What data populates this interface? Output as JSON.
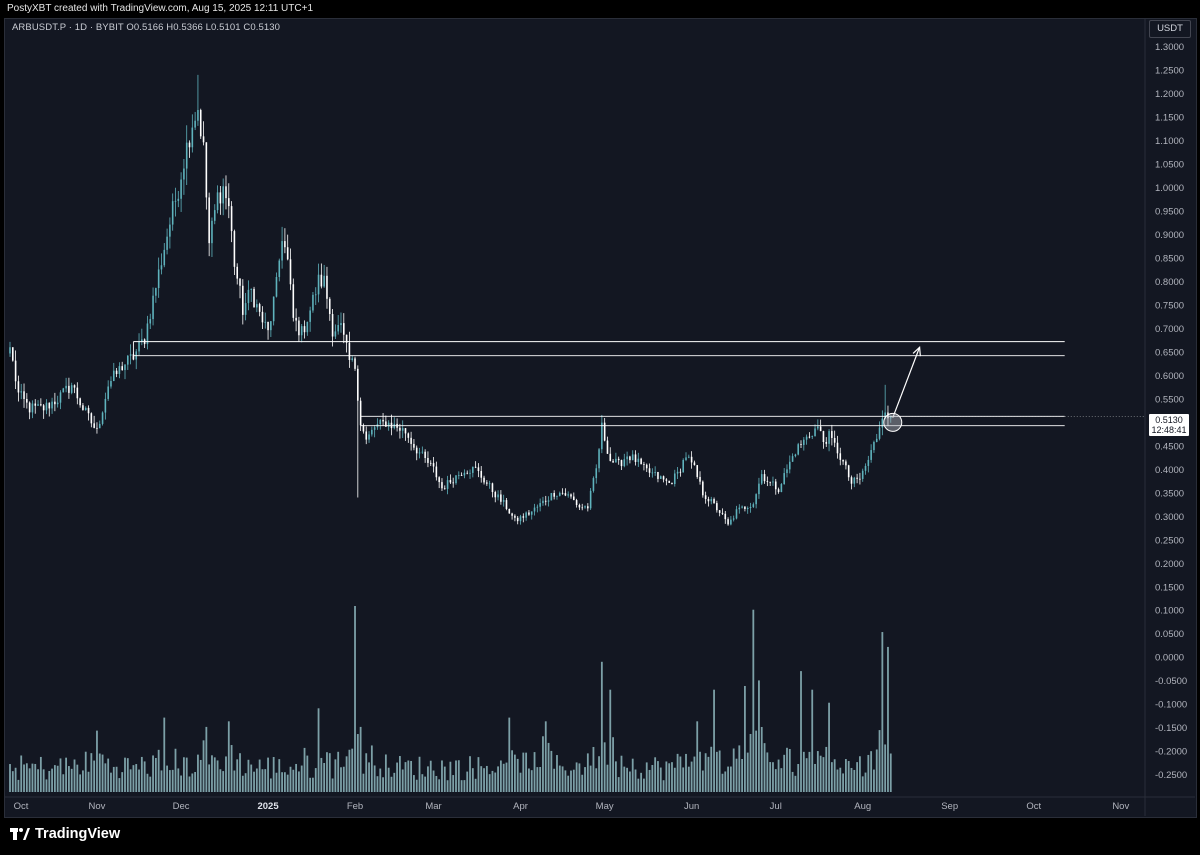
{
  "header": {
    "text": "PostyXBT created with TradingView.com, Aug 15, 2025 12:11 UTC+1"
  },
  "legend": {
    "text": "ARBUSDT.P · 1D · BYBIT   O0.5166  H0.5366  L0.5101  C0.5130"
  },
  "price_axis": {
    "currency": "USDT"
  },
  "last_price": {
    "price": "0.5130",
    "countdown": "12:48:41"
  },
  "footer": {
    "brand": "TradingView"
  },
  "colors": {
    "background": "#131722",
    "candle": "#5fb3bd",
    "candle_hollow": "#ffffff",
    "volume": "#8fb8be",
    "lines": "#ffffff"
  },
  "chart_data": {
    "type": "candlestick",
    "symbol": "ARBUSDT.P",
    "interval": "1D",
    "exchange": "BYBIT",
    "ylim": [
      -0.27,
      1.31
    ],
    "y_ticks": [
      "1.3000",
      "1.2500",
      "1.2000",
      "1.1500",
      "1.1000",
      "1.0500",
      "1.0000",
      "0.9500",
      "0.9000",
      "0.8500",
      "0.8000",
      "0.7500",
      "0.7000",
      "0.6500",
      "0.6000",
      "0.5500",
      "0.5000",
      "0.4500",
      "0.4000",
      "0.3500",
      "0.3000",
      "0.2500",
      "0.2000",
      "0.1500",
      "0.1000",
      "0.0500",
      "0.0000",
      "-0.0500",
      "-0.1000",
      "-0.1500",
      "-0.2000",
      "-0.2500"
    ],
    "x_ticks": [
      {
        "label": "Oct",
        "day": 0
      },
      {
        "label": "Nov",
        "day": 31
      },
      {
        "label": "Dec",
        "day": 61
      },
      {
        "label": "2025",
        "day": 92,
        "bold": true
      },
      {
        "label": "Feb",
        "day": 123
      },
      {
        "label": "Mar",
        "day": 151
      },
      {
        "label": "Apr",
        "day": 182
      },
      {
        "label": "May",
        "day": 212
      },
      {
        "label": "Jun",
        "day": 243
      },
      {
        "label": "Jul",
        "day": 273
      },
      {
        "label": "Aug",
        "day": 304
      },
      {
        "label": "Sep",
        "day": 335
      },
      {
        "label": "Oct",
        "day": 365
      },
      {
        "label": "Nov",
        "day": 396
      }
    ],
    "close_anchors": [
      [
        0,
        0.66
      ],
      [
        3,
        0.56
      ],
      [
        7,
        0.53
      ],
      [
        12,
        0.53
      ],
      [
        17,
        0.55
      ],
      [
        22,
        0.58
      ],
      [
        26,
        0.53
      ],
      [
        29,
        0.5
      ],
      [
        31,
        0.48
      ],
      [
        35,
        0.58
      ],
      [
        40,
        0.62
      ],
      [
        44,
        0.64
      ],
      [
        48,
        0.68
      ],
      [
        52,
        0.79
      ],
      [
        56,
        0.9
      ],
      [
        60,
        1.0
      ],
      [
        62,
        1.06
      ],
      [
        65,
        1.14
      ],
      [
        67,
        1.17
      ],
      [
        69,
        1.08
      ],
      [
        71,
        0.88
      ],
      [
        74,
        0.98
      ],
      [
        76,
        1.0
      ],
      [
        78,
        0.96
      ],
      [
        80,
        0.84
      ],
      [
        83,
        0.74
      ],
      [
        86,
        0.78
      ],
      [
        89,
        0.73
      ],
      [
        92,
        0.69
      ],
      [
        95,
        0.79
      ],
      [
        97,
        0.9
      ],
      [
        99,
        0.84
      ],
      [
        101,
        0.72
      ],
      [
        104,
        0.69
      ],
      [
        107,
        0.74
      ],
      [
        110,
        0.8
      ],
      [
        112,
        0.8
      ],
      [
        115,
        0.7
      ],
      [
        118,
        0.7
      ],
      [
        121,
        0.63
      ],
      [
        123,
        0.62
      ],
      [
        125,
        0.5
      ],
      [
        127,
        0.46
      ],
      [
        130,
        0.49
      ],
      [
        134,
        0.5
      ],
      [
        138,
        0.49
      ],
      [
        141,
        0.48
      ],
      [
        144,
        0.45
      ],
      [
        148,
        0.42
      ],
      [
        151,
        0.4
      ],
      [
        154,
        0.36
      ],
      [
        158,
        0.38
      ],
      [
        162,
        0.4
      ],
      [
        166,
        0.4
      ],
      [
        170,
        0.37
      ],
      [
        174,
        0.34
      ],
      [
        177,
        0.32
      ],
      [
        180,
        0.29
      ],
      [
        183,
        0.3
      ],
      [
        186,
        0.31
      ],
      [
        190,
        0.33
      ],
      [
        194,
        0.35
      ],
      [
        197,
        0.35
      ],
      [
        200,
        0.34
      ],
      [
        203,
        0.32
      ],
      [
        206,
        0.32
      ],
      [
        209,
        0.4
      ],
      [
        211,
        0.49
      ],
      [
        214,
        0.42
      ],
      [
        217,
        0.41
      ],
      [
        220,
        0.43
      ],
      [
        223,
        0.42
      ],
      [
        226,
        0.4
      ],
      [
        229,
        0.39
      ],
      [
        232,
        0.38
      ],
      [
        235,
        0.37
      ],
      [
        238,
        0.39
      ],
      [
        241,
        0.43
      ],
      [
        244,
        0.4
      ],
      [
        247,
        0.35
      ],
      [
        250,
        0.33
      ],
      [
        253,
        0.31
      ],
      [
        256,
        0.28
      ],
      [
        259,
        0.31
      ],
      [
        262,
        0.32
      ],
      [
        265,
        0.33
      ],
      [
        268,
        0.39
      ],
      [
        271,
        0.37
      ],
      [
        274,
        0.36
      ],
      [
        277,
        0.4
      ],
      [
        280,
        0.44
      ],
      [
        283,
        0.46
      ],
      [
        286,
        0.48
      ],
      [
        288,
        0.49
      ],
      [
        290,
        0.46
      ],
      [
        292,
        0.47
      ],
      [
        295,
        0.44
      ],
      [
        298,
        0.4
      ],
      [
        300,
        0.37
      ],
      [
        303,
        0.38
      ],
      [
        306,
        0.42
      ],
      [
        309,
        0.47
      ],
      [
        311,
        0.52
      ],
      [
        312,
        0.53
      ],
      [
        313,
        0.5
      ],
      [
        314,
        0.513
      ]
    ],
    "volume": {
      "peaks": [
        [
          31,
          0.33
        ],
        [
          55,
          0.4
        ],
        [
          70,
          0.35
        ],
        [
          78,
          0.38
        ],
        [
          110,
          0.45
        ],
        [
          123,
          1.0
        ],
        [
          125,
          0.35
        ],
        [
          178,
          0.4
        ],
        [
          191,
          0.38
        ],
        [
          211,
          0.7
        ],
        [
          214,
          0.55
        ],
        [
          245,
          0.38
        ],
        [
          251,
          0.55
        ],
        [
          262,
          0.57
        ],
        [
          265,
          0.98
        ],
        [
          267,
          0.6
        ],
        [
          282,
          0.65
        ],
        [
          286,
          0.55
        ],
        [
          292,
          0.48
        ],
        [
          311,
          0.86
        ],
        [
          313,
          0.78
        ]
      ],
      "ylim_px": [
        606,
        792
      ]
    },
    "horizontal_zones": [
      {
        "top": 0.672,
        "bottom": 0.642,
        "from_day": 44,
        "to_day": 376
      },
      {
        "top": 0.513,
        "bottom": 0.493,
        "from_day": 125,
        "to_day": 376
      }
    ],
    "annotations": [
      {
        "type": "arrow",
        "from": [
          314,
          0.51
        ],
        "to": [
          320,
          0.66
        ]
      },
      {
        "type": "circle",
        "at": [
          314,
          0.5
        ]
      }
    ]
  }
}
